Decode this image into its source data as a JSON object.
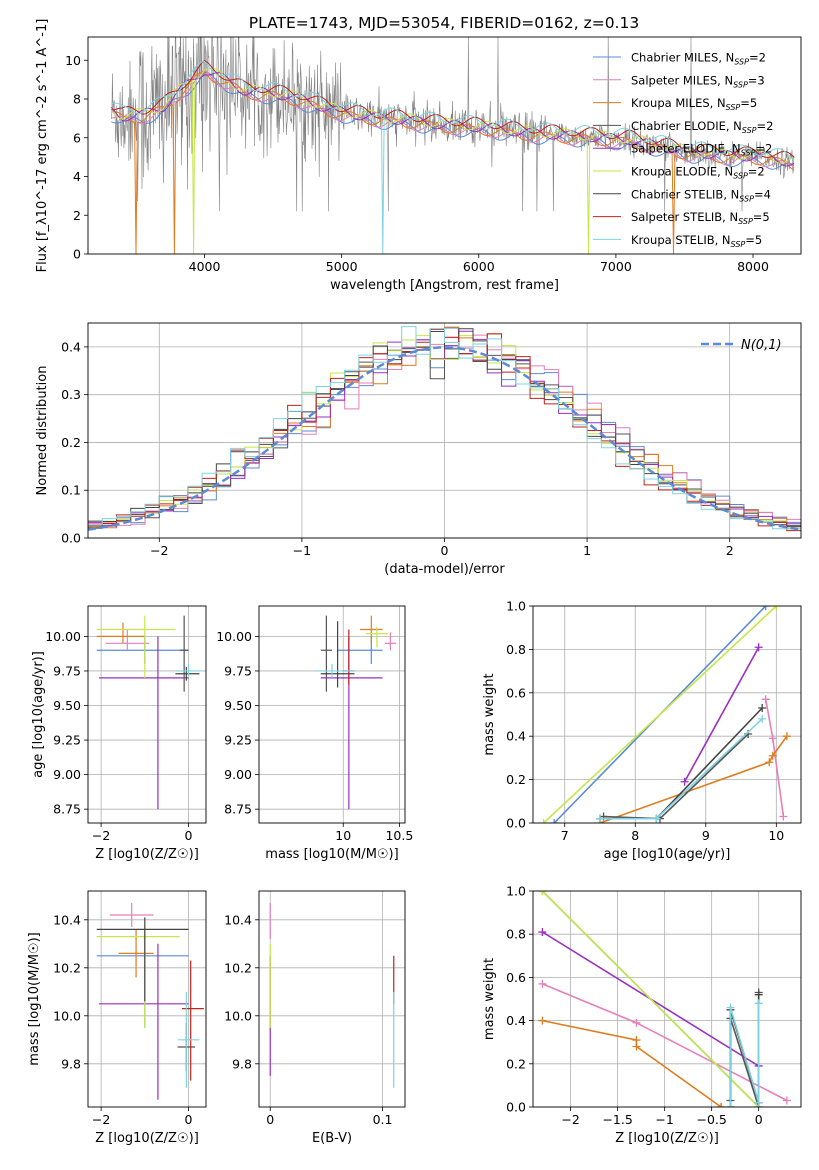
{
  "figure": {
    "title": "PLATE=1743, MJD=53054, FIBERID=0162, z=0.13"
  },
  "series_styles": [
    {
      "name": "Chabrier MILES",
      "nssp": "2",
      "color": "#5b8bd6"
    },
    {
      "name": "Salpeter MILES",
      "nssp": "3",
      "color": "#e77fb8"
    },
    {
      "name": "Kroupa MILES",
      "nssp": "5",
      "color": "#e07b1f"
    },
    {
      "name": "Chabrier ELODIE",
      "nssp": "2",
      "color": "#555555"
    },
    {
      "name": "Salpeter ELODIE",
      "nssp": "2",
      "color": "#9a2fc0"
    },
    {
      "name": "Kroupa ELODIE",
      "nssp": "2",
      "color": "#c6e64a"
    },
    {
      "name": "Chabrier STELIB",
      "nssp": "4",
      "color": "#444444"
    },
    {
      "name": "Salpeter STELIB",
      "nssp": "5",
      "color": "#c0221e"
    },
    {
      "name": "Kroupa STELIB",
      "nssp": "5",
      "color": "#7fd3e0"
    }
  ],
  "chart_data": [
    {
      "id": "spectrum",
      "type": "line",
      "xlabel": "wavelength [Angstrom, rest frame]",
      "ylabel": "Flux [f_λ10^-17 erg cm^-2 s^-1 A^-1]",
      "xlim": [
        3150,
        8350
      ],
      "ylim": [
        0,
        11.2
      ],
      "xticks": [
        4000,
        5000,
        6000,
        7000,
        8000
      ],
      "yticks": [
        0,
        2,
        4,
        6,
        8,
        10
      ],
      "legend": "upper-right",
      "legend_entries": [
        "Chabrier MILES, N_SSP=2",
        "Salpeter MILES, N_SSP=3",
        "Kroupa MILES, N_SSP=5",
        "Chabrier ELODIE, N_SSP=2",
        "Salpeter ELODIE, N_SSP=2",
        "Kroupa ELODIE, N_SSP=2",
        "Chabrier STELIB, N_SSP=4",
        "Salpeter STELIB, N_SSP=5",
        "Kroupa STELIB, N_SSP=5"
      ],
      "data_color": "#808080",
      "continuum": {
        "x": [
          3320,
          3400,
          3550,
          3700,
          3850,
          4000,
          4150,
          4300,
          4500,
          4700,
          4900,
          5100,
          5300,
          5500,
          5700,
          5900,
          6100,
          6300,
          6500,
          6700,
          6900,
          7100,
          7300,
          7500,
          7800,
          8100,
          8300
        ],
        "y": [
          7.4,
          7.1,
          7.2,
          7.6,
          8.6,
          9.5,
          9.0,
          8.4,
          8.3,
          8.0,
          7.5,
          7.2,
          7.0,
          6.9,
          6.7,
          6.6,
          6.5,
          6.3,
          6.2,
          6.1,
          6.0,
          5.9,
          5.6,
          5.3,
          5.1,
          5.0,
          4.7
        ]
      }
    },
    {
      "id": "residuals",
      "type": "line",
      "xlabel": "(data-model)/error",
      "ylabel": "Normed distribution",
      "xlim": [
        -2.5,
        2.5
      ],
      "ylim": [
        0,
        0.45
      ],
      "xticks": [
        -2,
        -1,
        0,
        1,
        2
      ],
      "yticks": [
        0.0,
        0.1,
        0.2,
        0.3,
        0.4
      ],
      "grid": true,
      "gaussian_label": "N(0,1)",
      "legend": "upper-right"
    },
    {
      "id": "z-age",
      "type": "scatter",
      "xlabel": "Z [log10(Z/Z☉)]",
      "ylabel": "age [log10(age/yr)]",
      "xlim": [
        -2.3,
        0.4
      ],
      "ylim": [
        8.65,
        10.22
      ],
      "xticks": [
        -2,
        0
      ],
      "yticks": [
        8.75,
        9.0,
        9.25,
        9.5,
        9.75,
        10.0
      ],
      "grid": true,
      "points": [
        {
          "series": 0,
          "x": -1.0,
          "xerr": [
            1.1,
            1.0
          ],
          "y": 9.9,
          "yerr": [
            0.1,
            0.1
          ]
        },
        {
          "series": 1,
          "x": -1.4,
          "xerr": [
            0.5,
            0.5
          ],
          "y": 9.95,
          "yerr": [
            0.05,
            0.1
          ]
        },
        {
          "series": 2,
          "x": -1.5,
          "xerr": [
            0.6,
            0.5
          ],
          "y": 10.0,
          "yerr": [
            0.05,
            0.1
          ]
        },
        {
          "series": 3,
          "x": -0.1,
          "xerr": [
            0.1,
            0.1
          ],
          "y": 9.9,
          "yerr": [
            0.3,
            0.25
          ]
        },
        {
          "series": 4,
          "x": -0.7,
          "xerr": [
            1.35,
            0.7
          ],
          "y": 9.7,
          "yerr": [
            0.95,
            0.3
          ]
        },
        {
          "series": 5,
          "x": -1.0,
          "xerr": [
            1.1,
            0.7
          ],
          "y": 10.05,
          "yerr": [
            0.35,
            0.1
          ]
        },
        {
          "series": 6,
          "x": -0.05,
          "xerr": [
            0.25,
            0.3
          ],
          "y": 9.73,
          "yerr": [
            0.05,
            0.05
          ]
        },
        {
          "series": 8,
          "x": 0.0,
          "xerr": [
            0.3,
            0.3
          ],
          "y": 9.75,
          "yerr": [
            0.05,
            0.05
          ]
        }
      ]
    },
    {
      "id": "mass-age",
      "type": "scatter",
      "xlabel": "mass [log10(M/M☉)]",
      "ylabel": "",
      "xlim": [
        9.25,
        10.55
      ],
      "ylim": [
        8.65,
        10.22
      ],
      "xticks": [
        10.0,
        10.5
      ],
      "yticks": [
        8.75,
        9.0,
        9.25,
        9.5,
        9.75,
        10.0
      ],
      "grid": true,
      "points": [
        {
          "series": 0,
          "x": 10.25,
          "xerr": [
            0.3,
            0.1
          ],
          "y": 9.9,
          "yerr": [
            0.1,
            0.1
          ]
        },
        {
          "series": 1,
          "x": 10.42,
          "xerr": [
            0.05,
            0.05
          ],
          "y": 9.95,
          "yerr": [
            0.05,
            0.08
          ]
        },
        {
          "series": 2,
          "x": 10.25,
          "xerr": [
            0.1,
            0.1
          ],
          "y": 10.05,
          "yerr": [
            0.1,
            0.1
          ]
        },
        {
          "series": 3,
          "x": 9.85,
          "xerr": [
            0.05,
            0.05
          ],
          "y": 9.9,
          "yerr": [
            0.3,
            0.25
          ]
        },
        {
          "series": 4,
          "x": 10.05,
          "xerr": [
            0.25,
            0.3
          ],
          "y": 9.7,
          "yerr": [
            0.95,
            0.3
          ]
        },
        {
          "series": 5,
          "x": 10.3,
          "xerr": [
            0.1,
            0.1
          ],
          "y": 10.02,
          "yerr": [
            0.1,
            0.05
          ]
        },
        {
          "series": 6,
          "x": 9.95,
          "xerr": [
            0.15,
            0.15
          ],
          "y": 9.73,
          "yerr": [
            0.1,
            0.38
          ]
        },
        {
          "series": 7,
          "x": 10.05,
          "xerr": [
            0.05,
            0.05
          ],
          "y": 9.75,
          "yerr": [
            0.1,
            0.3
          ]
        },
        {
          "series": 8,
          "x": 9.9,
          "xerr": [
            0.15,
            0.2
          ],
          "y": 9.75,
          "yerr": [
            0.05,
            0.05
          ]
        }
      ]
    },
    {
      "id": "age-weight",
      "type": "line",
      "xlabel": "age [log10(age/yr)]",
      "ylabel": "mass weight",
      "xlim": [
        6.55,
        10.35
      ],
      "ylim": [
        0,
        1.0
      ],
      "xticks": [
        7,
        8,
        9,
        10
      ],
      "yticks": [
        0.0,
        0.2,
        0.4,
        0.6,
        0.8,
        1.0
      ],
      "grid": true,
      "series": [
        {
          "series": 0,
          "x": [
            6.85,
            9.85
          ],
          "y": [
            0.0,
            1.0
          ]
        },
        {
          "series": 1,
          "x": [
            9.85,
            9.95,
            10.1
          ],
          "y": [
            0.57,
            0.39,
            0.03
          ]
        },
        {
          "series": 2,
          "x": [
            7.5,
            9.9,
            9.95,
            10.15
          ],
          "y": [
            0.0,
            0.28,
            0.31,
            0.4
          ]
        },
        {
          "series": 3,
          "x": [
            7.55,
            8.35,
            9.6
          ],
          "y": [
            0.03,
            0.02,
            0.41
          ]
        },
        {
          "series": 4,
          "x": [
            8.7,
            9.75
          ],
          "y": [
            0.19,
            0.81
          ]
        },
        {
          "series": 5,
          "x": [
            6.7,
            10.0
          ],
          "y": [
            0.0,
            1.0
          ]
        },
        {
          "series": 6,
          "x": [
            7.5,
            8.3,
            9.8
          ],
          "y": [
            0.02,
            0.02,
            0.53
          ]
        },
        {
          "series": 8,
          "x": [
            7.5,
            8.3,
            9.8
          ],
          "y": [
            0.02,
            0.02,
            0.48
          ]
        }
      ]
    },
    {
      "id": "z-mass",
      "type": "scatter",
      "xlabel": "Z [log10(Z/Z☉)]",
      "ylabel": "mass [log10(M/M☉)]",
      "xlim": [
        -2.3,
        0.4
      ],
      "ylim": [
        9.62,
        10.52
      ],
      "xticks": [
        -2,
        0
      ],
      "yticks": [
        9.8,
        10.0,
        10.2,
        10.4
      ],
      "grid": true,
      "points": [
        {
          "series": 0,
          "x": -1.0,
          "xerr": [
            1.1,
            1.0
          ],
          "y": 10.25,
          "yerr": [
            0.3,
            0.1
          ]
        },
        {
          "series": 1,
          "x": -1.3,
          "xerr": [
            0.5,
            0.5
          ],
          "y": 10.42,
          "yerr": [
            0.05,
            0.05
          ]
        },
        {
          "series": 2,
          "x": -1.2,
          "xerr": [
            0.4,
            0.4
          ],
          "y": 10.26,
          "yerr": [
            0.1,
            0.1
          ]
        },
        {
          "series": 3,
          "x": -0.05,
          "xerr": [
            0.2,
            0.2
          ],
          "y": 9.87,
          "yerr": [
            0.1,
            0.1
          ]
        },
        {
          "series": 4,
          "x": -0.7,
          "xerr": [
            1.35,
            0.7
          ],
          "y": 10.05,
          "yerr": [
            0.4,
            0.25
          ]
        },
        {
          "series": 5,
          "x": -1.0,
          "xerr": [
            1.1,
            0.8
          ],
          "y": 10.33,
          "yerr": [
            0.38,
            0.05
          ]
        },
        {
          "series": 6,
          "x": -1.0,
          "xerr": [
            1.1,
            1.0
          ],
          "y": 10.36,
          "yerr": [
            0.3,
            0.05
          ]
        },
        {
          "series": 7,
          "x": 0.05,
          "xerr": [
            0.2,
            0.3
          ],
          "y": 10.03,
          "yerr": [
            0.3,
            0.2
          ]
        },
        {
          "series": 8,
          "x": -0.05,
          "xerr": [
            0.2,
            0.3
          ],
          "y": 9.9,
          "yerr": [
            0.2,
            0.2
          ]
        }
      ]
    },
    {
      "id": "ebv-mass",
      "type": "scatter",
      "xlabel": "E(B-V)",
      "ylabel": "",
      "xlim": [
        -0.01,
        0.12
      ],
      "ylim": [
        9.62,
        10.52
      ],
      "xticks": [
        0.0,
        0.1
      ],
      "yticks": [
        9.8,
        10.0,
        10.2,
        10.4
      ],
      "grid": true,
      "points": [
        {
          "series": 1,
          "x": 0.0,
          "xerr": [
            0,
            0
          ],
          "y": 10.42,
          "yerr": [
            0.1,
            0.05
          ]
        },
        {
          "series": 4,
          "x": 0.0,
          "xerr": [
            0,
            0
          ],
          "y": 10.05,
          "yerr": [
            0.3,
            0.2
          ]
        },
        {
          "series": 5,
          "x": 0.0,
          "xerr": [
            0,
            0
          ],
          "y": 10.2,
          "yerr": [
            0.25,
            0.1
          ]
        },
        {
          "series": 7,
          "x": 0.11,
          "xerr": [
            0,
            0
          ],
          "y": 10.2,
          "yerr": [
            0.15,
            0.05
          ]
        },
        {
          "series": 8,
          "x": 0.11,
          "xerr": [
            0,
            0
          ],
          "y": 9.9,
          "yerr": [
            0.2,
            0.2
          ]
        }
      ]
    },
    {
      "id": "z-weight",
      "type": "line",
      "xlabel": "Z [log10(Z/Z☉)]",
      "ylabel": "mass weight",
      "xlim": [
        -2.4,
        0.45
      ],
      "ylim": [
        0,
        1.0
      ],
      "xticks": [
        -2.0,
        -1.5,
        -1.0,
        -0.5,
        0.0
      ],
      "yticks": [
        0.0,
        0.2,
        0.4,
        0.6,
        0.8,
        1.0
      ],
      "grid": true,
      "series": [
        {
          "series": 0,
          "x": [
            -2.3,
            0.0
          ],
          "y": [
            1.0,
            0.0
          ]
        },
        {
          "series": 1,
          "x": [
            -2.3,
            -1.3,
            0.3
          ],
          "y": [
            0.57,
            0.39,
            0.03
          ]
        },
        {
          "series": 2,
          "x": [
            -2.3,
            -1.3,
            -1.3,
            -0.4,
            -0.4
          ],
          "y": [
            0.4,
            0.31,
            0.28,
            0.0,
            0.0
          ]
        },
        {
          "series": 3,
          "x": [
            -0.3,
            -0.3,
            0.0,
            0.0
          ],
          "y": [
            0.03,
            0.41,
            0.0,
            0.53
          ]
        },
        {
          "series": 4,
          "x": [
            -2.3,
            0.0
          ],
          "y": [
            0.81,
            0.19
          ]
        },
        {
          "series": 5,
          "x": [
            -2.3,
            0.0
          ],
          "y": [
            1.0,
            0.0
          ]
        },
        {
          "series": 6,
          "x": [
            -0.3,
            -0.3,
            0.0,
            0.0
          ],
          "y": [
            0.0,
            0.45,
            0.02,
            0.52
          ]
        },
        {
          "series": 8,
          "x": [
            -0.3,
            -0.3,
            0.0,
            0.0
          ],
          "y": [
            0.0,
            0.46,
            0.02,
            0.48
          ]
        }
      ]
    }
  ]
}
